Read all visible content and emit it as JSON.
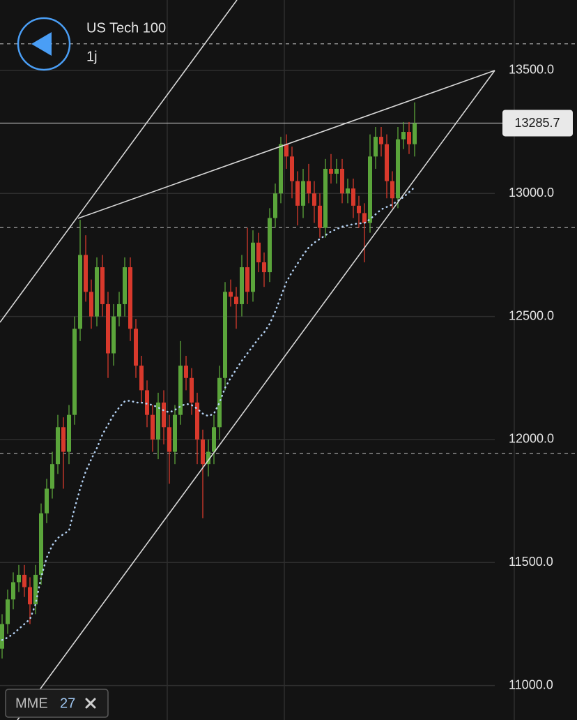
{
  "chart_data": {
    "type": "candlestick",
    "title": "US Tech 100",
    "subtitle": "1j",
    "ylim": [
      10860,
      13786
    ],
    "yticks": [
      {
        "value": 11000,
        "label": "11000.0"
      },
      {
        "value": 11500,
        "label": "11500.0"
      },
      {
        "value": 12000,
        "label": "12000.0"
      },
      {
        "value": 12500,
        "label": "12500.0"
      },
      {
        "value": 13000,
        "label": "13000.0"
      },
      {
        "value": 13500,
        "label": "13500.0"
      }
    ],
    "grid": true,
    "up_color": "#5ba53b",
    "down_color": "#d8392c",
    "levels": [
      13608,
      12861,
      11943
    ],
    "open": [
      11150,
      11250,
      11350,
      11420,
      11450,
      11400,
      11330,
      11450,
      11700,
      11800,
      11900,
      12050,
      11950,
      12100,
      12450,
      12750,
      12600,
      12500,
      12700,
      12550,
      12350,
      12500,
      12550,
      12700,
      12450,
      12300,
      12200,
      12100,
      12000,
      12150,
      12050,
      11950,
      12100,
      12300,
      12250,
      12150,
      12000,
      11900,
      11950,
      12050,
      12250,
      12600,
      12580,
      12550,
      12700,
      12600,
      12800,
      12720,
      12680,
      12900,
      13000,
      13200,
      13150,
      13050,
      12950,
      13050,
      13000,
      12950,
      12860,
      13100,
      13080,
      13100,
      13000,
      13020,
      12950,
      12920,
      12880,
      13150,
      13230,
      13200,
      13050,
      12980,
      13220,
      13250,
      13200
    ],
    "high": [
      11290,
      11390,
      11460,
      11490,
      11490,
      11440,
      11490,
      11740,
      11840,
      11950,
      12100,
      12090,
      12140,
      12500,
      12893,
      12830,
      12650,
      12740,
      12750,
      12600,
      12550,
      12600,
      12740,
      12740,
      12490,
      12340,
      12240,
      12140,
      12190,
      12200,
      12100,
      12140,
      12400,
      12340,
      12290,
      12190,
      12040,
      12000,
      12100,
      12300,
      12640,
      12650,
      12620,
      12750,
      12860,
      12850,
      12840,
      12760,
      12940,
      13040,
      13230,
      13240,
      13190,
      13090,
      13100,
      13120,
      13050,
      13000,
      13140,
      13160,
      13140,
      13140,
      13060,
      13060,
      12990,
      12960,
      13240,
      13270,
      13270,
      13240,
      13090,
      13270,
      13290,
      13290,
      13370
    ],
    "low": [
      11110,
      11210,
      11310,
      11380,
      11360,
      11250,
      11290,
      11410,
      11660,
      11760,
      11860,
      11800,
      11900,
      12060,
      12400,
      12560,
      12450,
      12460,
      12500,
      12250,
      12300,
      12460,
      12500,
      12400,
      12250,
      12150,
      12050,
      11950,
      11920,
      11980,
      11820,
      11900,
      12060,
      12200,
      12100,
      11900,
      11680,
      11850,
      11900,
      12000,
      12200,
      12540,
      12450,
      12500,
      12550,
      12560,
      12680,
      12620,
      12640,
      12860,
      12960,
      13100,
      12980,
      12870,
      12900,
      12960,
      12880,
      12820,
      12820,
      13040,
      13040,
      12960,
      12960,
      12900,
      12860,
      12720,
      12840,
      13100,
      13150,
      12980,
      12940,
      12940,
      13180,
      13160,
      13150
    ],
    "close": [
      11250,
      11350,
      11420,
      11450,
      11400,
      11330,
      11450,
      11700,
      11800,
      11900,
      12050,
      11950,
      12100,
      12450,
      12750,
      12600,
      12500,
      12700,
      12550,
      12350,
      12500,
      12550,
      12700,
      12450,
      12300,
      12200,
      12100,
      12000,
      12150,
      12050,
      11950,
      12100,
      12300,
      12250,
      12150,
      12000,
      11900,
      11950,
      12050,
      12250,
      12600,
      12580,
      12550,
      12700,
      12600,
      12800,
      12720,
      12680,
      12900,
      13000,
      13200,
      13150,
      13050,
      12950,
      13050,
      13000,
      12950,
      12860,
      13100,
      13080,
      13100,
      13000,
      13020,
      12950,
      12920,
      12880,
      13150,
      13230,
      13200,
      13050,
      12980,
      13220,
      13250,
      13200,
      13285.7
    ],
    "indicator": {
      "name": "MME",
      "period": 27,
      "color": "#b5d3f5",
      "values": [
        11185,
        11195,
        11210,
        11230,
        11250,
        11270,
        11330,
        11440,
        11520,
        11570,
        11600,
        11615,
        11630,
        11720,
        11800,
        11870,
        11920,
        11965,
        12020,
        12060,
        12100,
        12130,
        12155,
        12158,
        12150,
        12150,
        12145,
        12140,
        12130,
        12118,
        12110,
        12120,
        12135,
        12145,
        12140,
        12125,
        12105,
        12095,
        12105,
        12150,
        12210,
        12250,
        12285,
        12320,
        12350,
        12380,
        12410,
        12435,
        12470,
        12520,
        12580,
        12640,
        12680,
        12715,
        12750,
        12780,
        12800,
        12815,
        12830,
        12845,
        12855,
        12865,
        12870,
        12875,
        12878,
        12880,
        12895,
        12915,
        12935,
        12945,
        12955,
        12970,
        12985,
        13005,
        13025
      ]
    }
  }
}
